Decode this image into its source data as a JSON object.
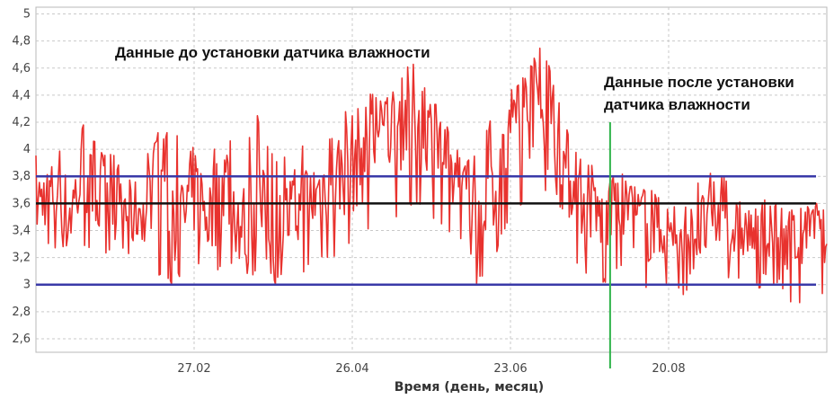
{
  "chart_data": {
    "type": "line",
    "title": "",
    "xlabel": "Время (день, месяц)",
    "ylabel": "",
    "ylim": [
      2.5,
      5.05
    ],
    "yticks": [
      "2,6",
      "2,8",
      "3",
      "3,2",
      "3,4",
      "3,6",
      "3,8",
      "4",
      "4,2",
      "4,4",
      "4,6",
      "4,8",
      "5"
    ],
    "xticks": [
      {
        "label": "27.02",
        "x": 0.2
      },
      {
        "label": "26.04",
        "x": 0.4
      },
      {
        "label": "23.06",
        "x": 0.6
      },
      {
        "label": "20.08",
        "x": 0.8
      }
    ],
    "grid": true,
    "reference_lines": [
      {
        "name": "upper",
        "y": 3.8,
        "color": "#3a3aa8"
      },
      {
        "name": "target",
        "y": 3.6,
        "color": "#111111"
      },
      {
        "name": "lower",
        "y": 3.0,
        "color": "#3a3aa8"
      }
    ],
    "event_marker": {
      "x": 0.726,
      "color": "#2fb34a"
    },
    "annotations": {
      "before": "Данные до установки датчика влажности",
      "after_line1": "Данные после установки",
      "after_line2": "датчика влажности"
    },
    "series": [
      {
        "color": "#e8322e",
        "x": [
          0.0,
          0.02,
          0.04,
          0.06,
          0.08,
          0.1,
          0.12,
          0.14,
          0.16,
          0.18,
          0.2,
          0.22,
          0.24,
          0.26,
          0.28,
          0.3,
          0.32,
          0.34,
          0.36,
          0.38,
          0.4,
          0.42,
          0.44,
          0.46,
          0.48,
          0.5,
          0.52,
          0.54,
          0.56,
          0.58,
          0.6,
          0.62,
          0.64,
          0.66,
          0.68,
          0.7,
          0.72,
          0.74,
          0.76,
          0.78,
          0.8,
          0.82,
          0.84,
          0.86,
          0.88,
          0.9,
          0.92,
          0.94,
          0.96,
          0.98,
          1.0
        ],
        "y": [
          3.6,
          3.7,
          3.5,
          3.8,
          3.6,
          3.7,
          3.5,
          3.6,
          3.9,
          3.4,
          3.7,
          3.5,
          3.8,
          3.4,
          3.6,
          3.3,
          3.5,
          3.6,
          3.7,
          3.8,
          3.9,
          4.0,
          4.1,
          4.2,
          4.3,
          4.1,
          3.9,
          3.6,
          3.5,
          3.8,
          4.1,
          4.3,
          4.2,
          4.0,
          3.7,
          3.5,
          3.5,
          3.6,
          3.5,
          3.4,
          3.4,
          3.3,
          3.4,
          3.5,
          3.4,
          3.4,
          3.3,
          3.4,
          3.3,
          3.4,
          3.3
        ],
        "high": [
          4.0,
          3.9,
          4.1,
          4.2,
          4.0,
          4.0,
          3.95,
          4.0,
          4.1,
          4.1,
          4.2,
          3.95,
          4.15,
          3.95,
          4.25,
          3.95,
          3.95,
          4.05,
          4.05,
          4.15,
          4.4,
          4.45,
          4.35,
          4.55,
          4.6,
          4.4,
          4.2,
          3.9,
          4.0,
          4.3,
          4.45,
          4.55,
          4.8,
          4.4,
          4.0,
          3.9,
          3.8,
          3.75,
          3.75,
          3.7,
          3.6,
          3.6,
          3.8,
          3.9,
          3.7,
          3.6,
          3.65,
          3.6,
          3.55,
          3.6,
          3.6
        ],
        "low": [
          3.2,
          3.3,
          3.1,
          3.3,
          3.1,
          3.3,
          3.2,
          3.3,
          3.0,
          3.0,
          3.2,
          3.0,
          3.2,
          3.0,
          3.1,
          3.0,
          3.0,
          3.1,
          3.2,
          3.2,
          3.3,
          3.4,
          3.5,
          3.5,
          3.6,
          3.5,
          3.4,
          3.0,
          3.0,
          3.2,
          3.5,
          3.6,
          3.4,
          3.2,
          3.2,
          3.0,
          3.0,
          3.1,
          3.0,
          2.9,
          3.0,
          2.9,
          3.0,
          3.1,
          3.0,
          3.0,
          2.95,
          3.0,
          2.8,
          3.0,
          2.9
        ]
      }
    ]
  }
}
